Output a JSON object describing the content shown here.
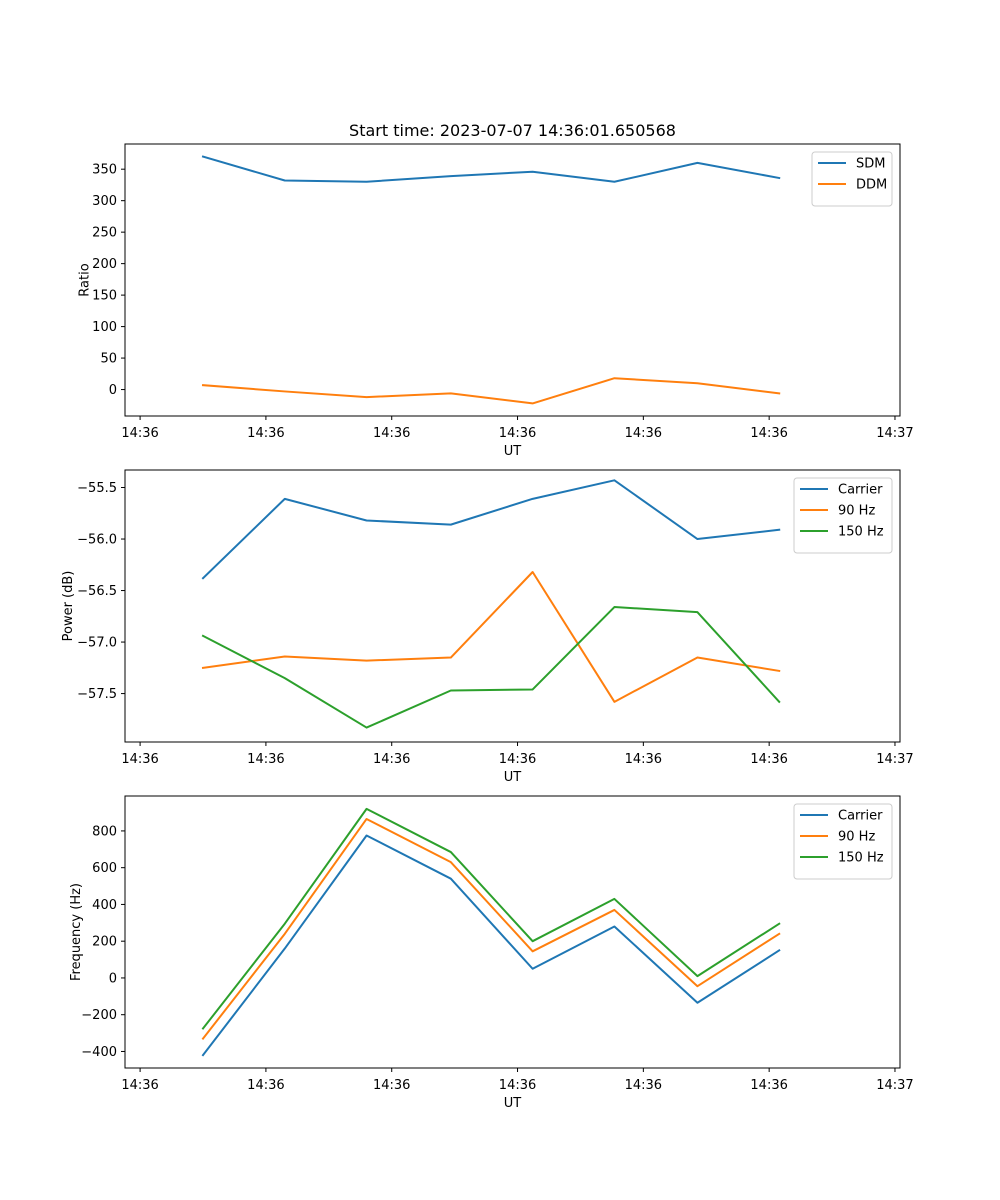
{
  "chart_data": [
    {
      "type": "line",
      "title": "Start time: 2023-07-07 14:36:01.650568",
      "xlabel": "UT",
      "ylabel": "Ratio",
      "x_ticks": [
        "14:36",
        "14:36",
        "14:36",
        "14:36",
        "14:36",
        "14:36",
        "14:37"
      ],
      "x_tick_positions": [
        0,
        1,
        2,
        3,
        4,
        5,
        6
      ],
      "xlim": [
        -0.12,
        6.04
      ],
      "x": [
        0.5,
        1.15,
        1.8,
        2.47,
        3.12,
        3.77,
        4.43,
        5.08
      ],
      "ylim": [
        -42,
        390
      ],
      "y_ticks": [
        0,
        50,
        100,
        150,
        200,
        250,
        300,
        350
      ],
      "y_tick_labels": [
        "0",
        "50",
        "100",
        "150",
        "200",
        "250",
        "300",
        "350"
      ],
      "legend_loc": "top-right",
      "series": [
        {
          "name": "SDM",
          "color": "#1f77b4",
          "values": [
            370,
            332,
            330,
            339,
            346,
            330,
            360,
            336
          ]
        },
        {
          "name": "DDM",
          "color": "#ff7f0e",
          "values": [
            7,
            -3,
            -12,
            -6,
            -22,
            18,
            10,
            -6
          ]
        }
      ]
    },
    {
      "type": "line",
      "title": "",
      "xlabel": "UT",
      "ylabel": "Power (dB)",
      "x_ticks": [
        "14:36",
        "14:36",
        "14:36",
        "14:36",
        "14:36",
        "14:36",
        "14:37"
      ],
      "x_tick_positions": [
        0,
        1,
        2,
        3,
        4,
        5,
        6
      ],
      "xlim": [
        -0.12,
        6.04
      ],
      "x": [
        0.5,
        1.15,
        1.8,
        2.47,
        3.12,
        3.77,
        4.43,
        5.08
      ],
      "ylim": [
        -57.97,
        -55.33
      ],
      "y_ticks": [
        -57.5,
        -57.0,
        -56.5,
        -56.0,
        -55.5
      ],
      "y_tick_labels": [
        "−57.5",
        "−57.0",
        "−56.5",
        "−56.0",
        "−55.5"
      ],
      "legend_loc": "top-right",
      "series": [
        {
          "name": "Carrier",
          "color": "#1f77b4",
          "values": [
            -56.38,
            -55.61,
            -55.82,
            -55.86,
            -55.61,
            -55.43,
            -56.0,
            -55.91
          ]
        },
        {
          "name": "90 Hz",
          "color": "#ff7f0e",
          "values": [
            -57.25,
            -57.14,
            -57.18,
            -57.15,
            -56.32,
            -57.58,
            -57.15,
            -57.28
          ]
        },
        {
          "name": "150 Hz",
          "color": "#2ca02c",
          "values": [
            -56.94,
            -57.35,
            -57.83,
            -57.47,
            -57.46,
            -56.66,
            -56.71,
            -57.58
          ]
        }
      ]
    },
    {
      "type": "line",
      "title": "",
      "xlabel": "UT",
      "ylabel": "Frequency (Hz)",
      "x_ticks": [
        "14:36",
        "14:36",
        "14:36",
        "14:36",
        "14:36",
        "14:36",
        "14:37"
      ],
      "x_tick_positions": [
        0,
        1,
        2,
        3,
        4,
        5,
        6
      ],
      "xlim": [
        -0.12,
        6.04
      ],
      "x": [
        0.5,
        1.15,
        1.8,
        2.47,
        3.12,
        3.77,
        4.43,
        5.08
      ],
      "ylim": [
        -490,
        990
      ],
      "y_ticks": [
        -400,
        -200,
        0,
        200,
        400,
        600,
        800
      ],
      "y_tick_labels": [
        "−400",
        "−200",
        "0",
        "200",
        "400",
        "600",
        "800"
      ],
      "legend_loc": "top-right",
      "series": [
        {
          "name": "Carrier",
          "color": "#1f77b4",
          "values": [
            -420,
            160,
            775,
            540,
            50,
            280,
            -135,
            150
          ]
        },
        {
          "name": "90 Hz",
          "color": "#ff7f0e",
          "values": [
            -330,
            240,
            865,
            630,
            145,
            370,
            -45,
            240
          ]
        },
        {
          "name": "150 Hz",
          "color": "#2ca02c",
          "values": [
            -275,
            295,
            920,
            685,
            200,
            430,
            10,
            295
          ]
        }
      ]
    }
  ]
}
